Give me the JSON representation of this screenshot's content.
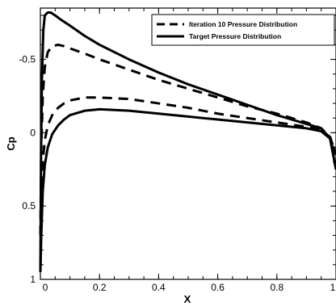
{
  "chart_data": {
    "type": "line",
    "title": "",
    "xlabel": "X",
    "ylabel": "Cp",
    "xlim": [
      0,
      1
    ],
    "ylim": [
      1,
      -0.85
    ],
    "y_inverted": true,
    "grid": false,
    "legend_position": "top-right",
    "x_ticks": [
      {
        "value": 0,
        "label": "0"
      },
      {
        "value": 0.2,
        "label": "0.2"
      },
      {
        "value": 0.4,
        "label": "0.4"
      },
      {
        "value": 0.6,
        "label": "0.6"
      },
      {
        "value": 0.8,
        "label": "0.8"
      },
      {
        "value": 1,
        "label": "1"
      }
    ],
    "y_ticks": [
      {
        "value": -0.5,
        "label": "-0.5"
      },
      {
        "value": 0,
        "label": "0"
      },
      {
        "value": 0.5,
        "label": "0.5"
      },
      {
        "value": 1,
        "label": "1"
      }
    ],
    "series": [
      {
        "name": "Iteration 10 Pressure Distribution",
        "style": "dashed",
        "color": "#000000",
        "upper": {
          "x": [
            0.0,
            0.003,
            0.008,
            0.015,
            0.025,
            0.04,
            0.06,
            0.08,
            0.1,
            0.15,
            0.2,
            0.3,
            0.4,
            0.5,
            0.6,
            0.7,
            0.8,
            0.9,
            0.95,
            0.98,
            1.0
          ],
          "y": [
            0.7,
            0.1,
            -0.25,
            -0.45,
            -0.55,
            -0.59,
            -0.6,
            -0.59,
            -0.575,
            -0.54,
            -0.5,
            -0.43,
            -0.36,
            -0.3,
            -0.24,
            -0.18,
            -0.13,
            -0.07,
            -0.03,
            0.03,
            0.15
          ]
        },
        "lower": {
          "x": [
            0.0,
            0.003,
            0.008,
            0.015,
            0.025,
            0.04,
            0.06,
            0.08,
            0.1,
            0.15,
            0.2,
            0.3,
            0.4,
            0.5,
            0.6,
            0.7,
            0.8,
            0.9,
            0.95,
            0.98,
            1.0
          ],
          "y": [
            0.7,
            0.45,
            0.2,
            0.05,
            -0.05,
            -0.12,
            -0.17,
            -0.2,
            -0.22,
            -0.24,
            -0.24,
            -0.23,
            -0.2,
            -0.17,
            -0.13,
            -0.1,
            -0.07,
            -0.04,
            -0.02,
            0.03,
            0.15
          ]
        }
      },
      {
        "name": "Target Pressure Distribution",
        "style": "solid",
        "color": "#000000",
        "upper": {
          "x": [
            0.0,
            0.002,
            0.005,
            0.01,
            0.015,
            0.025,
            0.035,
            0.05,
            0.07,
            0.1,
            0.15,
            0.2,
            0.3,
            0.4,
            0.5,
            0.6,
            0.7,
            0.8,
            0.9,
            0.95,
            0.98,
            1.0
          ],
          "y": [
            0.95,
            0.2,
            -0.35,
            -0.7,
            -0.8,
            -0.82,
            -0.82,
            -0.8,
            -0.77,
            -0.73,
            -0.66,
            -0.6,
            -0.5,
            -0.41,
            -0.33,
            -0.26,
            -0.19,
            -0.12,
            -0.06,
            -0.03,
            0.04,
            0.25
          ]
        },
        "lower": {
          "x": [
            0.0,
            0.003,
            0.008,
            0.015,
            0.025,
            0.04,
            0.06,
            0.08,
            0.1,
            0.15,
            0.2,
            0.3,
            0.4,
            0.5,
            0.6,
            0.7,
            0.8,
            0.9,
            0.95,
            0.98,
            1.0
          ],
          "y": [
            0.95,
            0.7,
            0.4,
            0.22,
            0.1,
            0.01,
            -0.05,
            -0.09,
            -0.12,
            -0.15,
            -0.16,
            -0.15,
            -0.13,
            -0.11,
            -0.09,
            -0.07,
            -0.05,
            -0.03,
            -0.01,
            0.04,
            0.25
          ]
        }
      }
    ]
  }
}
